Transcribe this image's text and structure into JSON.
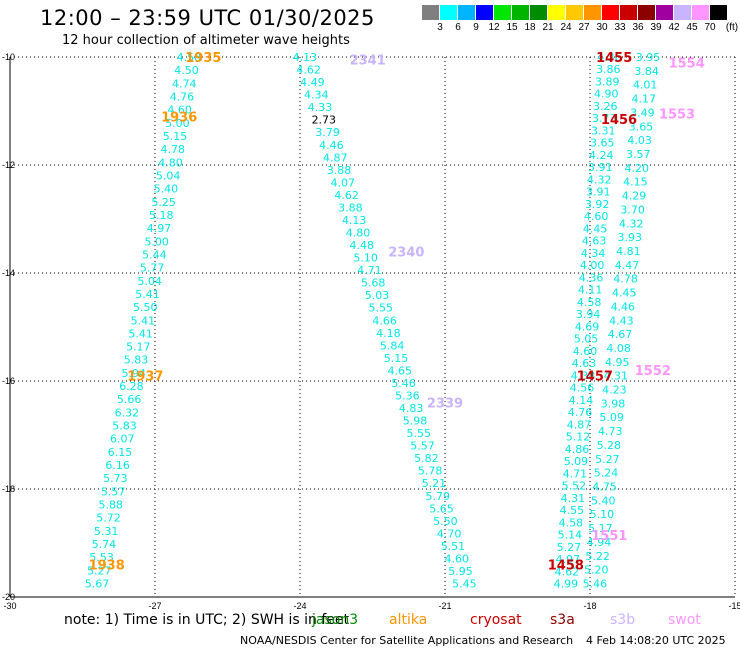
{
  "header": {
    "title": "12:00 – 23:59 UTC 01/30/2025",
    "subtitle": "12 hour collection of altimeter wave heights"
  },
  "colorbar": {
    "unit_label": "(ft)",
    "colors": [
      "#7f7f7f",
      "#00ffff",
      "#00b4ff",
      "#0000ff",
      "#00e600",
      "#00b400",
      "#008c00",
      "#ffff00",
      "#ffc800",
      "#ff9600",
      "#ff0000",
      "#c80000",
      "#8c0000",
      "#a000a0",
      "#c8b4ff",
      "#ff96ff",
      "#000000"
    ],
    "labels": [
      "3",
      "6",
      "9",
      "12",
      "15",
      "18",
      "21",
      "24",
      "27",
      "30",
      "33",
      "36",
      "39",
      "42",
      "45",
      "70"
    ]
  },
  "axes": {
    "x_ticks": [
      "-30",
      "-27",
      "-24",
      "-21",
      "-18",
      "-15"
    ],
    "y_ticks": [
      "-10",
      "-12",
      "-14",
      "-16",
      "-18",
      "-20"
    ]
  },
  "footer": {
    "note": "note:  1) Time is in UTC;  2) SWH is in feet",
    "legend": [
      {
        "name": "jason3",
        "color": "#008c00"
      },
      {
        "name": "altika",
        "color": "#ff9600"
      },
      {
        "name": "cryosat",
        "color": "#c80000"
      },
      {
        "name": "s3a",
        "color": "#8c0000"
      },
      {
        "name": "s3b",
        "color": "#c8b4ff"
      },
      {
        "name": "swot",
        "color": "#ff96ff"
      }
    ],
    "credit": "NOAA/NESDIS Center for Satellite Applications and Research",
    "timestamp": "4 Feb 14:08:20 UTC 2025"
  },
  "chart_data": {
    "type": "scatter",
    "title": "12:00 – 23:59 UTC 01/30/2025",
    "subtitle": "12 hour collection of altimeter wave heights",
    "xlim": [
      -30,
      -15
    ],
    "ylim": [
      -20,
      -10
    ],
    "grid": true,
    "point_color": "#00e6e6",
    "series": [
      {
        "track": "A",
        "start": [
          -26.3,
          -10.0
        ],
        "end": [
          -28.2,
          -19.75
        ],
        "values": [
          "4.58",
          "4.50",
          "4.74",
          "4.76",
          "4.60",
          "5.00",
          "5.15",
          "4.78",
          "4.80",
          "5.04",
          "5.40",
          "5.25",
          "5.18",
          "4.97",
          "5.00",
          "5.44",
          "5.77",
          "5.04",
          "5.41",
          "5.50",
          "5.41",
          "5.41",
          "5.17",
          "5.83",
          "5.94",
          "6.28",
          "5.66",
          "6.32",
          "5.83",
          "6.07",
          "6.15",
          "6.16",
          "5.73",
          "5.57",
          "5.88",
          "5.72",
          "5.31",
          "5.74",
          "5.53",
          "5.27",
          "5.67"
        ]
      },
      {
        "track": "B",
        "start": [
          -23.9,
          -10.0
        ],
        "end": [
          -20.6,
          -19.75
        ],
        "values": [
          "4.13",
          "4.62",
          "4.49",
          "4.34",
          "4.33",
          "2.73",
          "3.79",
          "4.46",
          "4.87",
          "3.88",
          "4.07",
          "4.62",
          "3.88",
          "4.13",
          "4.80",
          "4.48",
          "5.10",
          "4.71",
          "5.68",
          "5.03",
          "5.55",
          "4.66",
          "4.18",
          "5.84",
          "5.15",
          "4.65",
          "5.46",
          "5.36",
          "4.83",
          "5.98",
          "5.55",
          "5.57",
          "5.82",
          "5.78",
          "5.21",
          "5.79",
          "5.65",
          "5.50",
          "4.70",
          "5.51",
          "4.60",
          "5.95",
          "5.45"
        ]
      },
      {
        "track": "C",
        "start": [
          -17.6,
          -10.0
        ],
        "end": [
          -18.5,
          -19.75
        ],
        "values": [
          "4.36",
          "3.86",
          "3.89",
          "4.90",
          "3.26",
          "3.73",
          "3.31",
          "3.65",
          "4.24",
          "3.91",
          "4.32",
          "3.91",
          "3.92",
          "4.60",
          "4.45",
          "4.63",
          "4.34",
          "4.00",
          "4.36",
          "4.11",
          "4.58",
          "3.94",
          "4.69",
          "5.05",
          "4.60",
          "4.63",
          "4.38",
          "4.56",
          "4.14",
          "4.76",
          "4.87",
          "5.12",
          "4.86",
          "5.09",
          "4.71",
          "5.52",
          "4.31",
          "4.55",
          "4.58",
          "5.14",
          "5.27",
          "4.97",
          "4.62",
          "4.99"
        ]
      },
      {
        "track": "D",
        "start": [
          -16.8,
          -10.0
        ],
        "end": [
          -17.9,
          -19.75
        ],
        "values": [
          "3.95",
          "3.84",
          "4.01",
          "4.17",
          "3.49",
          "3.65",
          "4.03",
          "3.57",
          "4.20",
          "4.15",
          "4.29",
          "3.70",
          "4.32",
          "3.93",
          "4.81",
          "4.47",
          "4.78",
          "4.45",
          "4.46",
          "4.43",
          "4.67",
          "4.08",
          "4.95",
          "4.31",
          "4.23",
          "3.98",
          "5.09",
          "4.73",
          "5.28",
          "5.27",
          "5.24",
          "4.75",
          "5.40",
          "5.10",
          "5.17",
          "4.94",
          "5.22",
          "5.20",
          "5.46"
        ]
      }
    ],
    "time_labels": [
      {
        "text": "1935",
        "x": -26.0,
        "y": -10.0,
        "satellite": "altika"
      },
      {
        "text": "1936",
        "x": -26.5,
        "y": -11.1,
        "satellite": "altika"
      },
      {
        "text": "1937",
        "x": -27.2,
        "y": -15.9,
        "satellite": "altika"
      },
      {
        "text": "1938",
        "x": -28.0,
        "y": -19.4,
        "satellite": "altika"
      },
      {
        "text": "2341",
        "x": -22.6,
        "y": -10.05,
        "satellite": "s3b"
      },
      {
        "text": "2340",
        "x": -21.8,
        "y": -13.6,
        "satellite": "s3b"
      },
      {
        "text": "2339",
        "x": -21.0,
        "y": -16.4,
        "satellite": "s3b"
      },
      {
        "text": "1455",
        "x": -17.5,
        "y": -10.0,
        "satellite": "cryosat"
      },
      {
        "text": "1456",
        "x": -17.4,
        "y": -11.15,
        "satellite": "cryosat"
      },
      {
        "text": "1457",
        "x": -17.9,
        "y": -15.9,
        "satellite": "cryosat"
      },
      {
        "text": "1458",
        "x": -18.5,
        "y": -19.4,
        "satellite": "cryosat"
      },
      {
        "text": "1554",
        "x": -16.0,
        "y": -10.1,
        "satellite": "swot"
      },
      {
        "text": "1553",
        "x": -16.2,
        "y": -11.05,
        "satellite": "swot"
      },
      {
        "text": "1552",
        "x": -16.7,
        "y": -15.8,
        "satellite": "swot"
      },
      {
        "text": "1551",
        "x": -17.6,
        "y": -18.85,
        "satellite": "swot"
      }
    ],
    "legend": [
      "jason3",
      "altika",
      "cryosat",
      "s3a",
      "s3b",
      "swot"
    ]
  }
}
